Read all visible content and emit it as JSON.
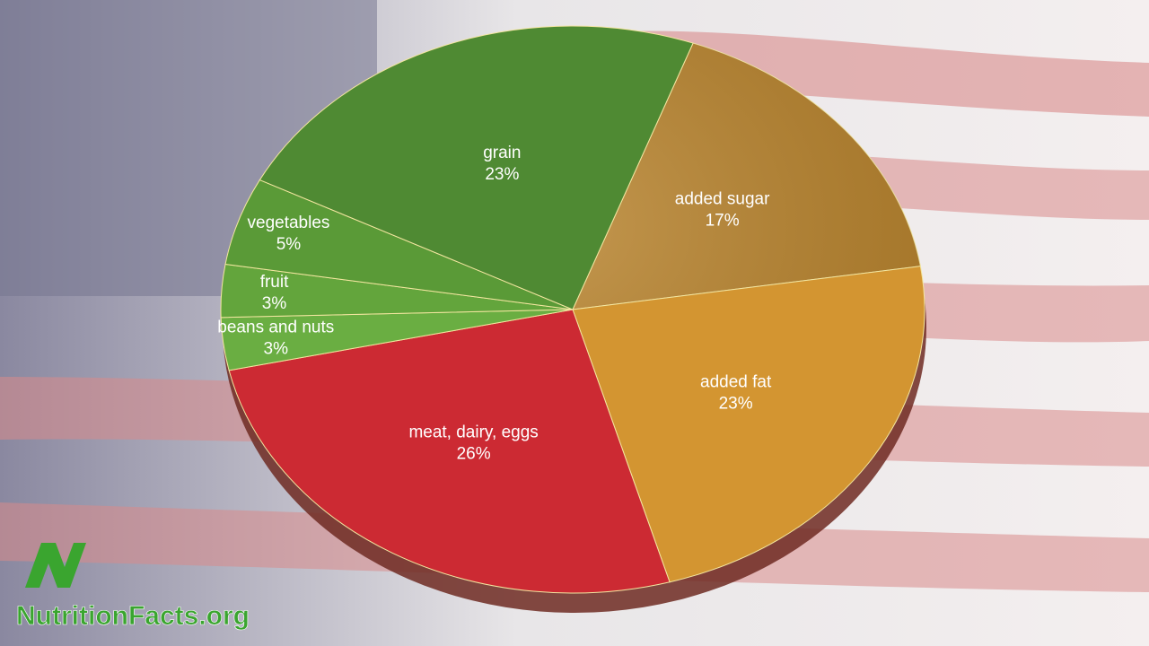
{
  "chart_data": {
    "type": "pie",
    "categories": [
      "added sugar",
      "added fat",
      "meat, dairy, eggs",
      "beans and nuts",
      "fruit",
      "vegetables",
      "grain"
    ],
    "values": [
      17,
      23,
      26,
      3,
      3,
      5,
      23
    ],
    "value_labels": [
      "17%",
      "23%",
      "26%",
      "3%",
      "3%",
      "5%",
      "23%"
    ],
    "colors": [
      "#b8822a",
      "#d39531",
      "#cc2a33",
      "#6aae42",
      "#63a53c",
      "#5a9a37",
      "#4f8a33"
    ]
  },
  "logo": {
    "text": "NutritionFacts.org"
  }
}
